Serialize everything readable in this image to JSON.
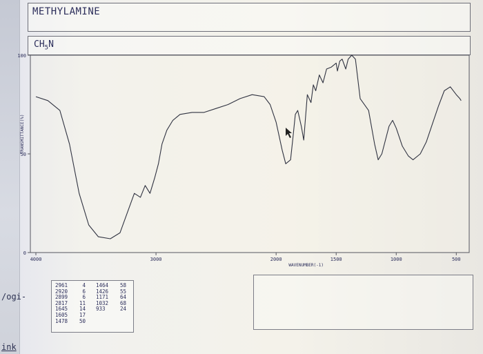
{
  "compound": {
    "name": "METHYLAMINE",
    "formula": "CH5N"
  },
  "side": {
    "left_label": "/ogi-",
    "bottom_label": "ink"
  },
  "chart_data": {
    "type": "line",
    "title": "METHYLAMINE",
    "subtitle": "CH5N",
    "xlabel": "WAVENUMBER(-1)",
    "ylabel": "TRANSMITTANCE(%)",
    "x_unit": "cm-1",
    "xlim": [
      4000,
      450
    ],
    "ylim": [
      0,
      100
    ],
    "x_ticks": [
      4000,
      3000,
      2000,
      1500,
      1000,
      500
    ],
    "x_tick_labels": [
      "4000",
      "3000",
      "2000",
      "1500",
      "1000",
      "500"
    ],
    "y_ticks": [
      0,
      50,
      100
    ],
    "y_tick_labels": [
      "0",
      "50",
      "100"
    ],
    "grid": false,
    "series": [
      {
        "points": [
          [
            4000,
            79
          ],
          [
            3900,
            77
          ],
          [
            3800,
            72
          ],
          [
            3720,
            55
          ],
          [
            3640,
            30
          ],
          [
            3560,
            14
          ],
          [
            3480,
            8
          ],
          [
            3380,
            7
          ],
          [
            3300,
            10
          ],
          [
            3240,
            20
          ],
          [
            3180,
            30
          ],
          [
            3130,
            28
          ],
          [
            3090,
            34
          ],
          [
            3050,
            30
          ],
          [
            3010,
            38
          ],
          [
            2980,
            45
          ],
          [
            2950,
            55
          ],
          [
            2910,
            62
          ],
          [
            2860,
            67
          ],
          [
            2800,
            70
          ],
          [
            2700,
            71
          ],
          [
            2600,
            71
          ],
          [
            2500,
            73
          ],
          [
            2400,
            75
          ],
          [
            2300,
            78
          ],
          [
            2200,
            80
          ],
          [
            2100,
            79
          ],
          [
            2050,
            75
          ],
          [
            2000,
            66
          ],
          [
            1950,
            52
          ],
          [
            1920,
            45
          ],
          [
            1880,
            47
          ],
          [
            1860,
            58
          ],
          [
            1840,
            70
          ],
          [
            1820,
            72
          ],
          [
            1790,
            64
          ],
          [
            1770,
            57
          ],
          [
            1740,
            80
          ],
          [
            1710,
            76
          ],
          [
            1690,
            85
          ],
          [
            1670,
            82
          ],
          [
            1640,
            90
          ],
          [
            1610,
            86
          ],
          [
            1580,
            93
          ],
          [
            1540,
            94
          ],
          [
            1500,
            96
          ],
          [
            1490,
            92
          ],
          [
            1470,
            97
          ],
          [
            1450,
            98
          ],
          [
            1420,
            93
          ],
          [
            1400,
            98
          ],
          [
            1370,
            100
          ],
          [
            1340,
            98
          ],
          [
            1300,
            78
          ],
          [
            1230,
            72
          ],
          [
            1180,
            55
          ],
          [
            1150,
            47
          ],
          [
            1120,
            50
          ],
          [
            1090,
            57
          ],
          [
            1060,
            64
          ],
          [
            1030,
            67
          ],
          [
            1000,
            63
          ],
          [
            950,
            54
          ],
          [
            900,
            49
          ],
          [
            860,
            47
          ],
          [
            800,
            50
          ],
          [
            750,
            56
          ],
          [
            700,
            65
          ],
          [
            650,
            74
          ],
          [
            600,
            82
          ],
          [
            550,
            84
          ],
          [
            500,
            80
          ],
          [
            470,
            78
          ],
          [
            460,
            77
          ]
        ]
      }
    ]
  },
  "peak_table": {
    "col1": [
      [
        "2961",
        "4"
      ],
      [
        "2920",
        "6"
      ],
      [
        "2899",
        "6"
      ],
      [
        "2817",
        "11"
      ],
      [
        "1645",
        "14"
      ],
      [
        "1605",
        "17"
      ],
      [
        "1478",
        "50"
      ]
    ],
    "col2": [
      [
        "1464",
        "58"
      ],
      [
        "1426",
        "55"
      ],
      [
        "1171",
        "64"
      ],
      [
        "1032",
        "68"
      ],
      [
        "933",
        "24"
      ]
    ]
  }
}
